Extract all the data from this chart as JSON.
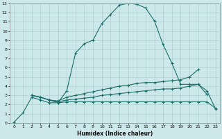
{
  "title": "",
  "xlabel": "Humidex (Indice chaleur)",
  "background_color": "#cce8ea",
  "grid_color": "#b0d0d0",
  "line_color": "#1a6e6a",
  "xlim": [
    -0.5,
    23.5
  ],
  "ylim": [
    0,
    13
  ],
  "xticks": [
    0,
    1,
    2,
    3,
    4,
    5,
    6,
    7,
    8,
    9,
    10,
    11,
    12,
    13,
    14,
    15,
    16,
    17,
    18,
    19,
    20,
    21,
    22,
    23
  ],
  "yticks": [
    0,
    1,
    2,
    3,
    4,
    5,
    6,
    7,
    8,
    9,
    10,
    11,
    12,
    13
  ],
  "line1_x": [
    0,
    1,
    2,
    3,
    4,
    5,
    6,
    7,
    8,
    9,
    10,
    11,
    12,
    13,
    14,
    15,
    16,
    17,
    18,
    19,
    20,
    21,
    22
  ],
  "line1_y": [
    0.1,
    1.1,
    2.8,
    2.5,
    2.2,
    2.2,
    3.5,
    7.6,
    8.6,
    9.0,
    10.8,
    11.8,
    12.8,
    13.0,
    12.9,
    12.5,
    11.1,
    8.5,
    6.5,
    4.2,
    4.2,
    4.2,
    3.1
  ],
  "line2_x": [
    2,
    3,
    4,
    5,
    6,
    7,
    8,
    9,
    10,
    11,
    12,
    13,
    14,
    15,
    16,
    17,
    18,
    19,
    20,
    21
  ],
  "line2_y": [
    3.0,
    2.8,
    2.5,
    2.4,
    2.8,
    3.0,
    3.2,
    3.4,
    3.6,
    3.8,
    4.0,
    4.1,
    4.3,
    4.4,
    4.4,
    4.5,
    4.6,
    4.7,
    5.0,
    5.8
  ],
  "line3_x": [
    2,
    3,
    4,
    5,
    6,
    7,
    8,
    9,
    10,
    11,
    12,
    13,
    14,
    15,
    16,
    17,
    18,
    19,
    20,
    21,
    22,
    23
  ],
  "line3_y": [
    3.0,
    2.8,
    2.5,
    2.3,
    2.5,
    2.6,
    2.7,
    2.8,
    3.0,
    3.1,
    3.2,
    3.3,
    3.4,
    3.5,
    3.6,
    3.7,
    3.7,
    3.8,
    4.0,
    4.2,
    3.5,
    1.5
  ],
  "line4_x": [
    2,
    3,
    4,
    5,
    6,
    7,
    8,
    9,
    10,
    11,
    12,
    13,
    14,
    15,
    16,
    17,
    18,
    19,
    20,
    21,
    22,
    23
  ],
  "line4_y": [
    3.0,
    2.8,
    2.5,
    2.2,
    2.3,
    2.3,
    2.3,
    2.3,
    2.3,
    2.3,
    2.3,
    2.3,
    2.3,
    2.3,
    2.3,
    2.3,
    2.3,
    2.3,
    2.3,
    2.3,
    2.3,
    1.6
  ]
}
